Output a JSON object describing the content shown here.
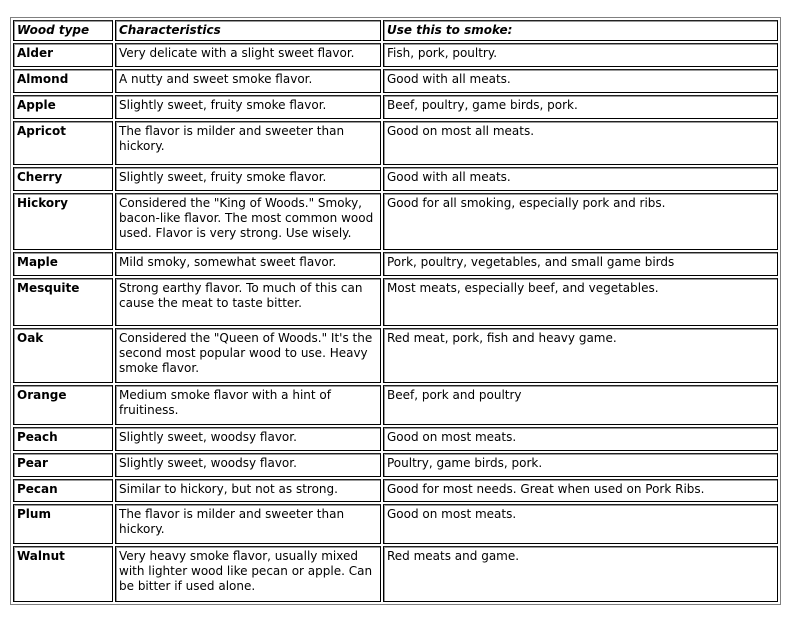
{
  "table": {
    "headers": [
      "Wood type",
      "Characteristics",
      "Use this to smoke:"
    ],
    "rows": [
      [
        "Alder",
        "Very delicate with a slight sweet flavor.",
        "Fish, pork, poultry."
      ],
      [
        "Almond",
        "A nutty and sweet smoke flavor.",
        "Good with all meats."
      ],
      [
        "Apple",
        "Slightly sweet, fruity smoke flavor.",
        "Beef, poultry, game birds, pork."
      ],
      [
        "Apricot",
        "The flavor is milder and sweeter than hickory.",
        "Good on most all meats."
      ],
      [
        "Cherry",
        "Slightly sweet, fruity smoke flavor.",
        "Good with all meats."
      ],
      [
        "Hickory",
        "Considered the \"King of Woods.\" Smoky, bacon-like flavor. The most common wood used. Flavor is very strong. Use wisely.",
        "Good for all smoking, especially pork and ribs."
      ],
      [
        "Maple",
        "Mild smoky, somewhat sweet flavor.",
        "Pork, poultry, vegetables, and small game birds"
      ],
      [
        "Mesquite",
        "Strong earthy flavor. To much of this can cause the meat to taste bitter.",
        "Most meats, especially beef, and vegetables."
      ],
      [
        "Oak",
        "Considered the \"Queen of Woods.\" It's the second most popular wood to use. Heavy smoke flavor.",
        "Red meat, pork, fish and heavy game."
      ],
      [
        "Orange",
        "Medium smoke flavor with a hint of fruitiness.",
        "Beef, pork and poultry"
      ],
      [
        "Peach",
        "Slightly sweet, woodsy flavor.",
        "Good on most meats."
      ],
      [
        "Pear",
        "Slightly sweet, woodsy flavor.",
        "Poultry, game birds, pork."
      ],
      [
        "Pecan",
        "Similar to hickory, but not as strong.",
        "Good for most needs. Great when used on Pork Ribs."
      ],
      [
        "Plum",
        "The flavor is milder and sweeter than hickory.",
        "Good on most meats."
      ],
      [
        "Walnut",
        "Very heavy smoke flavor, usually mixed with lighter wood like pecan or apple. Can be bitter if used alone.",
        "Red meats and game."
      ]
    ]
  }
}
